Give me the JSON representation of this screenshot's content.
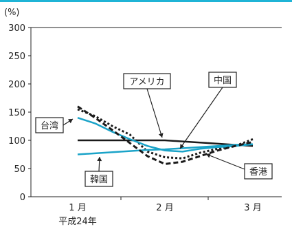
{
  "chart_data": {
    "type": "line",
    "ylabel": "(%)",
    "ylim": [
      0,
      300
    ],
    "yticks": [
      0,
      50,
      100,
      150,
      200,
      250,
      300
    ],
    "categories": [
      "1月",
      "2月",
      "3月"
    ],
    "era_label": "平成24年",
    "x": [
      1,
      1.2,
      1.4,
      1.6,
      1.8,
      2.0,
      2.2,
      2.4,
      2.6,
      2.8,
      3.0
    ],
    "series": [
      {
        "name": "アメリカ",
        "style": "solid",
        "color": "#1a1a1a",
        "values": [
          100,
          100,
          100,
          100,
          100,
          100,
          98,
          96,
          94,
          92,
          90
        ]
      },
      {
        "name": "中国",
        "style": "dotted",
        "color": "#1a1a1a",
        "values": [
          155,
          143,
          125,
          110,
          80,
          70,
          68,
          78,
          85,
          90,
          102
        ]
      },
      {
        "name": "台湾",
        "style": "solid",
        "color": "#1aa3c8",
        "values": [
          140,
          130,
          115,
          102,
          90,
          82,
          80,
          85,
          88,
          90,
          93
        ]
      },
      {
        "name": "韓国",
        "style": "solid",
        "color": "#1aa3c8",
        "values": [
          75,
          77,
          79,
          81,
          83,
          84,
          86,
          88,
          90,
          92,
          93
        ]
      },
      {
        "name": "香港",
        "style": "dashed",
        "color": "#1a1a1a",
        "values": [
          160,
          140,
          118,
          95,
          72,
          58,
          62,
          72,
          82,
          90,
          97
        ]
      }
    ],
    "annotations": [
      {
        "label": "アメリカ"
      },
      {
        "label": "中国"
      },
      {
        "label": "台湾"
      },
      {
        "label": "韓国"
      },
      {
        "label": "香港"
      }
    ]
  }
}
